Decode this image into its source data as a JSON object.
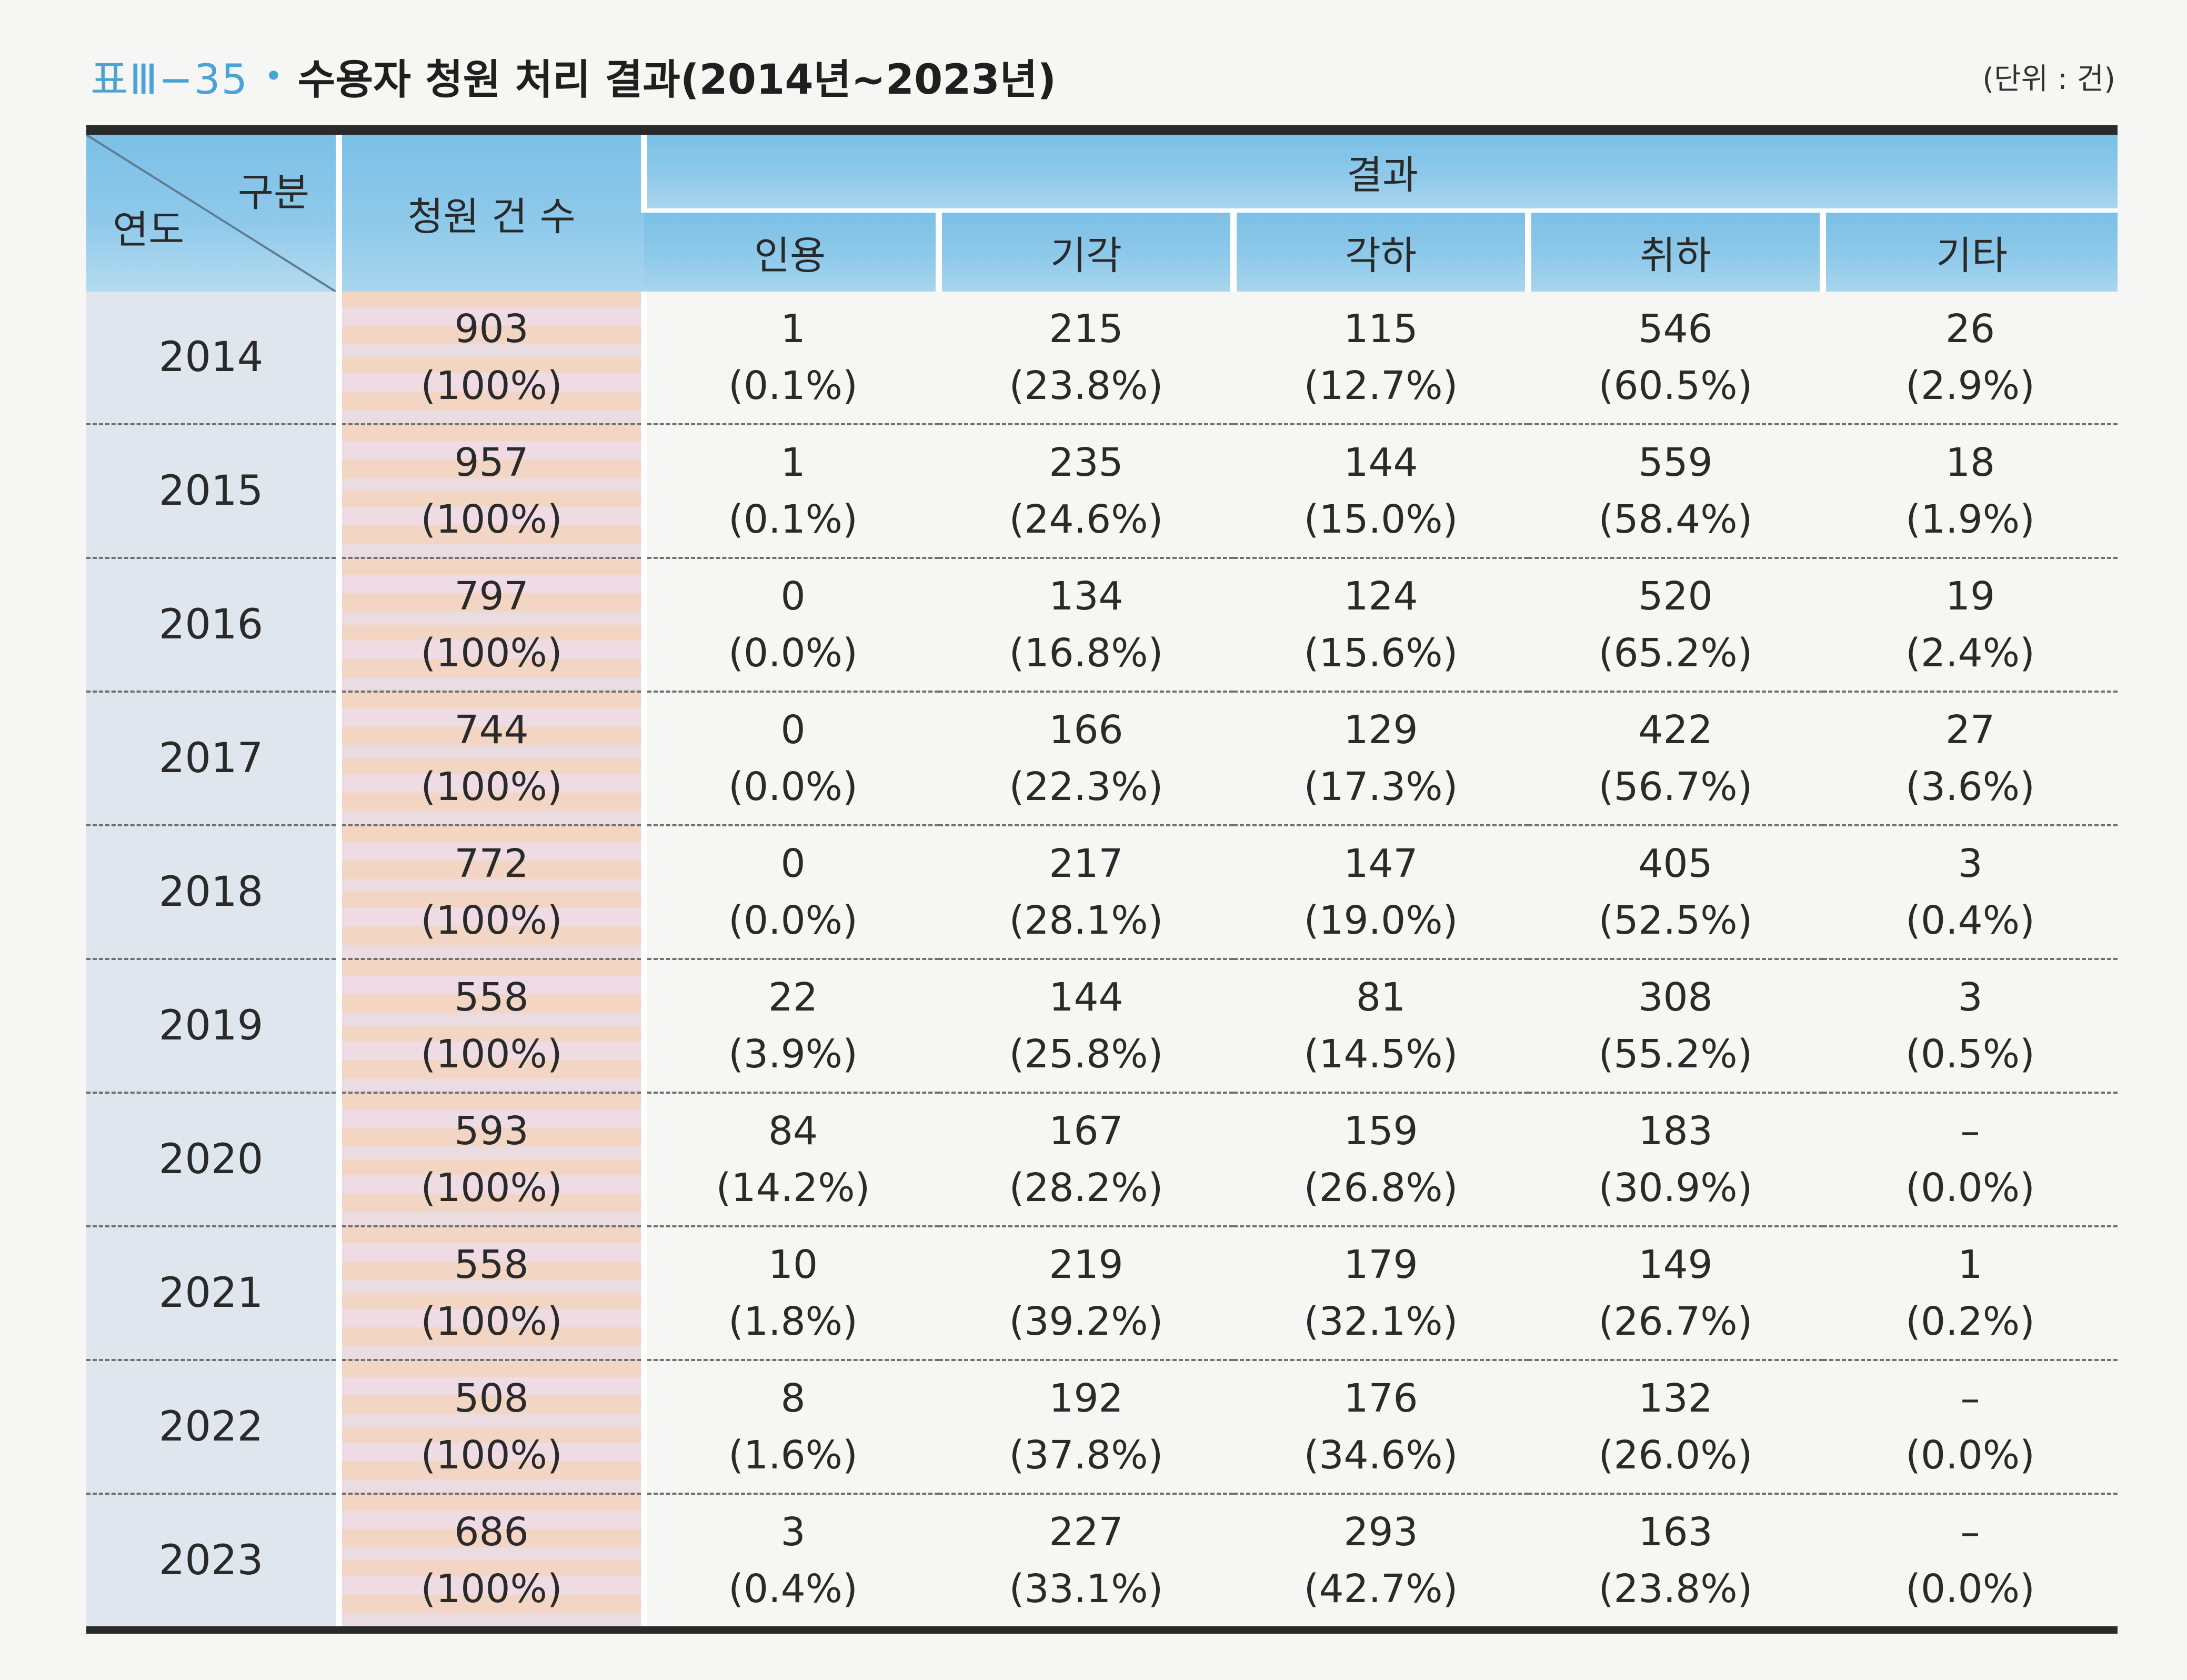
{
  "title": {
    "label": "표Ⅲ−35",
    "bullet": "•",
    "text": "수용자 청원 처리 결과(2014년~2023년)",
    "unit": "(단위 : 건)"
  },
  "header": {
    "corner_top": "구분",
    "corner_bottom": "연도",
    "count": "청원 건 수",
    "result": "결과",
    "sub": [
      "인용",
      "기각",
      "각하",
      "취하",
      "기타"
    ]
  },
  "rows": [
    {
      "year": "2014",
      "count": "903",
      "count_pct": "(100%)",
      "cells": [
        [
          "1",
          "(0.1%)"
        ],
        [
          "215",
          "(23.8%)"
        ],
        [
          "115",
          "(12.7%)"
        ],
        [
          "546",
          "(60.5%)"
        ],
        [
          "26",
          "(2.9%)"
        ]
      ]
    },
    {
      "year": "2015",
      "count": "957",
      "count_pct": "(100%)",
      "cells": [
        [
          "1",
          "(0.1%)"
        ],
        [
          "235",
          "(24.6%)"
        ],
        [
          "144",
          "(15.0%)"
        ],
        [
          "559",
          "(58.4%)"
        ],
        [
          "18",
          "(1.9%)"
        ]
      ]
    },
    {
      "year": "2016",
      "count": "797",
      "count_pct": "(100%)",
      "cells": [
        [
          "0",
          "(0.0%)"
        ],
        [
          "134",
          "(16.8%)"
        ],
        [
          "124",
          "(15.6%)"
        ],
        [
          "520",
          "(65.2%)"
        ],
        [
          "19",
          "(2.4%)"
        ]
      ]
    },
    {
      "year": "2017",
      "count": "744",
      "count_pct": "(100%)",
      "cells": [
        [
          "0",
          "(0.0%)"
        ],
        [
          "166",
          "(22.3%)"
        ],
        [
          "129",
          "(17.3%)"
        ],
        [
          "422",
          "(56.7%)"
        ],
        [
          "27",
          "(3.6%)"
        ]
      ]
    },
    {
      "year": "2018",
      "count": "772",
      "count_pct": "(100%)",
      "cells": [
        [
          "0",
          "(0.0%)"
        ],
        [
          "217",
          "(28.1%)"
        ],
        [
          "147",
          "(19.0%)"
        ],
        [
          "405",
          "(52.5%)"
        ],
        [
          "3",
          "(0.4%)"
        ]
      ]
    },
    {
      "year": "2019",
      "count": "558",
      "count_pct": "(100%)",
      "cells": [
        [
          "22",
          "(3.9%)"
        ],
        [
          "144",
          "(25.8%)"
        ],
        [
          "81",
          "(14.5%)"
        ],
        [
          "308",
          "(55.2%)"
        ],
        [
          "3",
          "(0.5%)"
        ]
      ]
    },
    {
      "year": "2020",
      "count": "593",
      "count_pct": "(100%)",
      "cells": [
        [
          "84",
          "(14.2%)"
        ],
        [
          "167",
          "(28.2%)"
        ],
        [
          "159",
          "(26.8%)"
        ],
        [
          "183",
          "(30.9%)"
        ],
        [
          "–",
          "(0.0%)"
        ]
      ]
    },
    {
      "year": "2021",
      "count": "558",
      "count_pct": "(100%)",
      "cells": [
        [
          "10",
          "(1.8%)"
        ],
        [
          "219",
          "(39.2%)"
        ],
        [
          "179",
          "(32.1%)"
        ],
        [
          "149",
          "(26.7%)"
        ],
        [
          "1",
          "(0.2%)"
        ]
      ]
    },
    {
      "year": "2022",
      "count": "508",
      "count_pct": "(100%)",
      "cells": [
        [
          "8",
          "(1.6%)"
        ],
        [
          "192",
          "(37.8%)"
        ],
        [
          "176",
          "(34.6%)"
        ],
        [
          "132",
          "(26.0%)"
        ],
        [
          "–",
          "(0.0%)"
        ]
      ]
    },
    {
      "year": "2023",
      "count": "686",
      "count_pct": "(100%)",
      "cells": [
        [
          "3",
          "(0.4%)"
        ],
        [
          "227",
          "(33.1%)"
        ],
        [
          "293",
          "(42.7%)"
        ],
        [
          "163",
          "(23.8%)"
        ],
        [
          "–",
          "(0.0%)"
        ]
      ]
    }
  ],
  "colors": {
    "accent": "#4aa3d6",
    "header_bg": "#8ec9ea",
    "year_bg": "#dfe6ee",
    "count_bg": "#f2d5c3",
    "rule": "#2a2a2a"
  }
}
